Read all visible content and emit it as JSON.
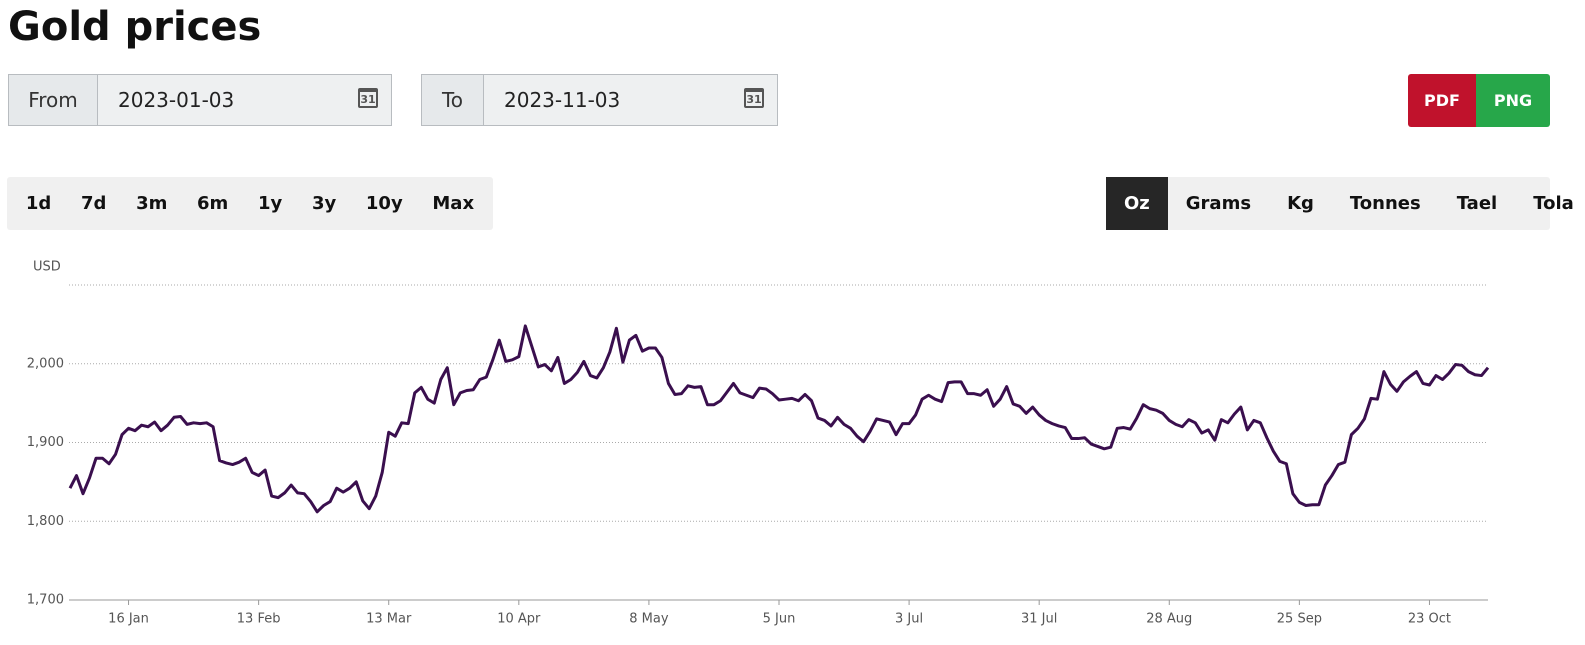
{
  "header": {
    "title": "Gold prices"
  },
  "date_range": {
    "from_label": "From",
    "from_value": "2023-01-03",
    "to_label": "To",
    "to_value": "2023-11-03",
    "calendar_icon": "31"
  },
  "export_buttons": [
    "PDF",
    "PNG"
  ],
  "range_buttons": [
    "1d",
    "7d",
    "3m",
    "6m",
    "1y",
    "3y",
    "10y",
    "Max"
  ],
  "unit_buttons": [
    "Oz",
    "Grams",
    "Kg",
    "Tonnes",
    "Tael",
    "Tola"
  ],
  "selected_unit": "Oz",
  "chart_data": {
    "type": "line",
    "y_label": "USD",
    "color": "#3a0f4e",
    "grid": true,
    "ylim": [
      1700,
      2100
    ],
    "yticks": [
      {
        "value": 1700,
        "label": "1,700"
      },
      {
        "value": 1800,
        "label": "1,800"
      },
      {
        "value": 1900,
        "label": "1,900"
      },
      {
        "value": 2000,
        "label": "2,000"
      }
    ],
    "categories": [
      null,
      null,
      null,
      null,
      null,
      null,
      null,
      null,
      null,
      "16 Jan",
      null,
      null,
      null,
      null,
      null,
      null,
      null,
      null,
      null,
      null,
      null,
      null,
      null,
      null,
      null,
      null,
      null,
      null,
      null,
      "13 Feb",
      null,
      null,
      null,
      null,
      null,
      null,
      null,
      null,
      null,
      null,
      null,
      null,
      null,
      null,
      null,
      null,
      null,
      null,
      null,
      "13 Mar",
      null,
      null,
      null,
      null,
      null,
      null,
      null,
      null,
      null,
      null,
      null,
      null,
      null,
      null,
      null,
      null,
      null,
      null,
      null,
      "10 Apr",
      null,
      null,
      null,
      null,
      null,
      null,
      null,
      null,
      null,
      null,
      null,
      null,
      null,
      null,
      null,
      null,
      null,
      null,
      null,
      "8 May",
      null,
      null,
      null,
      null,
      null,
      null,
      null,
      null,
      null,
      null,
      null,
      null,
      null,
      null,
      null,
      null,
      null,
      null,
      null,
      "5 Jun",
      null,
      null,
      null,
      null,
      null,
      null,
      null,
      null,
      null,
      null,
      null,
      null,
      null,
      null,
      null,
      null,
      null,
      null,
      null,
      "3 Jul",
      null,
      null,
      null,
      null,
      null,
      null,
      null,
      null,
      null,
      null,
      null,
      null,
      null,
      null,
      null,
      null,
      null,
      null,
      null,
      "31 Jul",
      null,
      null,
      null,
      null,
      null,
      null,
      null,
      null,
      null,
      null,
      null,
      null,
      null,
      null,
      null,
      null,
      null,
      null,
      null,
      "28 Aug",
      null,
      null,
      null,
      null,
      null,
      null,
      null,
      null,
      null,
      null,
      null,
      null,
      null,
      null,
      null,
      null,
      null,
      null,
      null,
      "25 Sep",
      null,
      null,
      null,
      null,
      null,
      null,
      null,
      null,
      null,
      null,
      null,
      null,
      null,
      null,
      null,
      null,
      null,
      null,
      null,
      "23 Oct",
      null,
      null,
      null,
      null,
      null,
      null,
      null,
      null,
      null
    ],
    "values": [
      1842,
      1858,
      1835,
      1855,
      1880,
      1880,
      1873,
      1885,
      1910,
      1918,
      1915,
      1922,
      1920,
      1926,
      1915,
      1922,
      1932,
      1933,
      1923,
      1925,
      1924,
      1925,
      1920,
      1877,
      1874,
      1872,
      1875,
      1880,
      1862,
      1858,
      1865,
      1832,
      1830,
      1836,
      1846,
      1836,
      1835,
      1825,
      1812,
      1820,
      1825,
      1842,
      1837,
      1842,
      1850,
      1826,
      1816,
      1832,
      1862,
      1913,
      1908,
      1925,
      1924,
      1963,
      1970,
      1955,
      1950,
      1980,
      1995,
      1948,
      1963,
      1966,
      1967,
      1980,
      1983,
      2005,
      2030,
      2003,
      2005,
      2009,
      2048,
      2022,
      1996,
      1999,
      1991,
      2008,
      1975,
      1980,
      1989,
      2003,
      1985,
      1982,
      1995,
      2015,
      2045,
      2002,
      2030,
      2036,
      2016,
      2020,
      2020,
      2008,
      1975,
      1961,
      1962,
      1972,
      1970,
      1971,
      1948,
      1948,
      1953,
      1964,
      1975,
      1963,
      1960,
      1957,
      1969,
      1968,
      1962,
      1954,
      1955,
      1956,
      1953,
      1961,
      1953,
      1931,
      1928,
      1921,
      1932,
      1923,
      1918,
      1908,
      1901,
      1914,
      1930,
      1928,
      1926,
      1910,
      1924,
      1924,
      1935,
      1955,
      1960,
      1955,
      1952,
      1976,
      1977,
      1977,
      1962,
      1962,
      1960,
      1967,
      1946,
      1955,
      1971,
      1949,
      1946,
      1937,
      1945,
      1935,
      1928,
      1924,
      1921,
      1919,
      1905,
      1905,
      1906,
      1898,
      1895,
      1892,
      1894,
      1918,
      1919,
      1917,
      1931,
      1948,
      1943,
      1941,
      1937,
      1928,
      1923,
      1920,
      1929,
      1925,
      1912,
      1916,
      1903,
      1929,
      1925,
      1936,
      1945,
      1916,
      1928,
      1925,
      1906,
      1889,
      1876,
      1873,
      1835,
      1824,
      1820,
      1821,
      1821,
      1846,
      1858,
      1872,
      1875,
      1910,
      1918,
      1930,
      1956,
      1955,
      1990,
      1974,
      1965,
      1977,
      1984,
      1990,
      1975,
      1973,
      1985,
      1980,
      1988,
      1999,
      1998,
      1990,
      1986,
      1985,
      1995
    ]
  }
}
